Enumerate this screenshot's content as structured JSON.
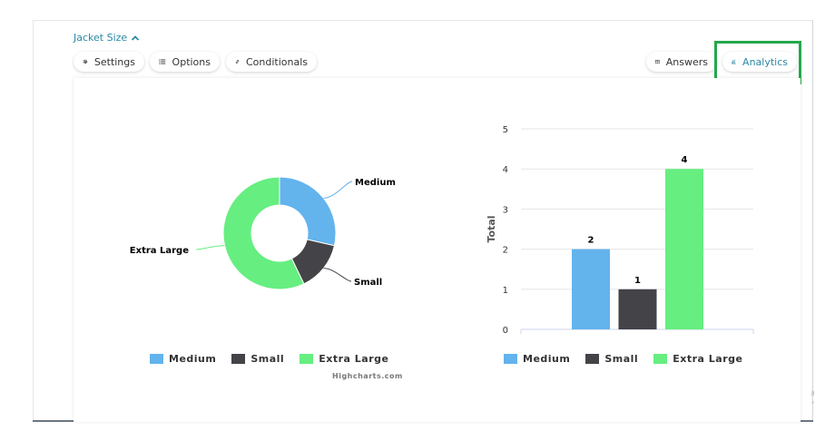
{
  "question": {
    "title": "Jacket Size"
  },
  "toolbar": {
    "settings_label": "Settings",
    "options_label": "Options",
    "conditionals_label": "Conditionals",
    "answers_label": "Answers",
    "analytics_label": "Analytics"
  },
  "colors": {
    "accent": "#2b8aa6",
    "highlight": "#23a84a",
    "medium": "#63b3ed",
    "small": "#434348",
    "extra_large": "#66ee80"
  },
  "credits": "Highcharts.com",
  "chart_data": [
    {
      "type": "pie",
      "donut": true,
      "categories": [
        "Medium",
        "Small",
        "Extra Large"
      ],
      "values": [
        2,
        1,
        4
      ],
      "colors": [
        "#63b3ed",
        "#434348",
        "#66ee80"
      ],
      "legend": "bottom"
    },
    {
      "type": "bar",
      "categories": [
        "Medium",
        "Small",
        "Extra Large"
      ],
      "values": [
        2,
        1,
        4
      ],
      "data_labels": [
        "2",
        "1",
        "4"
      ],
      "colors": [
        "#63b3ed",
        "#434348",
        "#66ee80"
      ],
      "ylabel": "Total",
      "ylim": [
        0,
        5
      ],
      "yticks": [
        "0",
        "1",
        "2",
        "3",
        "4",
        "5"
      ],
      "grid": true,
      "legend": "bottom"
    }
  ]
}
